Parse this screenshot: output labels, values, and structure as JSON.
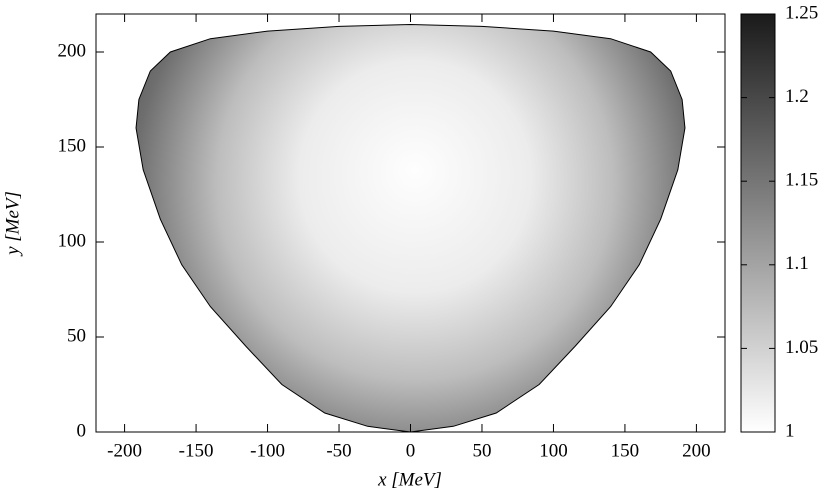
{
  "chart_data": {
    "type": "heatmap",
    "x_label": "x [MeV]",
    "y_label": "y [MeV]",
    "x": [
      0,
      -30,
      -60,
      -90,
      -115,
      -140,
      -160,
      -175,
      -187,
      -192,
      -190,
      -182,
      -168,
      -140,
      -100,
      -50,
      0,
      50,
      100,
      140,
      168,
      182,
      190,
      192,
      187,
      175,
      160,
      140,
      115,
      90,
      60,
      30,
      0
    ],
    "y": [
      0,
      3,
      10,
      25,
      45,
      66,
      88,
      112,
      138,
      160,
      175,
      190,
      200,
      207,
      211,
      213.5,
      214.5,
      213.5,
      211,
      207,
      200,
      190,
      175,
      160,
      138,
      112,
      88,
      66,
      45,
      25,
      10,
      3,
      0
    ],
    "xlim": [
      -220,
      220
    ],
    "ylim": [
      0,
      220
    ],
    "xticks": [
      -200,
      -150,
      -100,
      -50,
      0,
      50,
      100,
      150,
      200
    ],
    "yticks": [
      0,
      50,
      100,
      150,
      200
    ],
    "clim": [
      1,
      1.25
    ],
    "cticks": [
      1,
      1.05,
      1.1,
      1.15,
      1.2,
      1.25
    ],
    "colormap": [
      "#ffffff",
      "#1a1a1a"
    ]
  }
}
